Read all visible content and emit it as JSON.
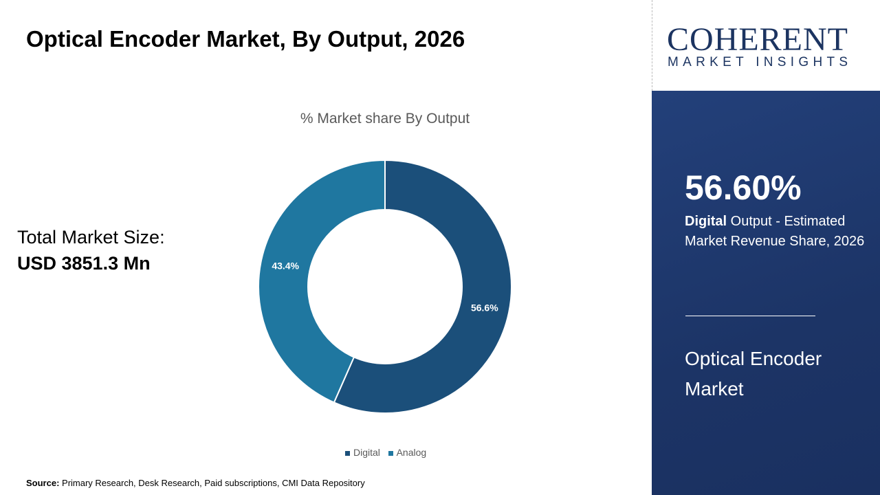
{
  "title": "Optical Encoder Market, By Output, 2026",
  "logo": {
    "top": "COHERENT",
    "bottom": "MARKET INSIGHTS"
  },
  "total": {
    "label": "Total Market Size:",
    "value": "USD 3851.3 Mn"
  },
  "panel": {
    "big": "56.60%",
    "bold": "Digital",
    "desc": " Output - Estimated Market Revenue Share, 2026",
    "market": "Optical Encoder Market"
  },
  "source": {
    "label": "Source:",
    "text": " Primary Research, Desk Research, Paid subscriptions, CMI Data Repository"
  },
  "chart_data": {
    "type": "pie",
    "donut": true,
    "title": "% Market share By Output",
    "categories": [
      "Digital",
      "Analog"
    ],
    "values": [
      56.6,
      43.4
    ],
    "labels": [
      "56.6%",
      "43.4%"
    ],
    "colors": [
      "#1b4f7a",
      "#1f77a0"
    ],
    "legend": "bottom"
  }
}
